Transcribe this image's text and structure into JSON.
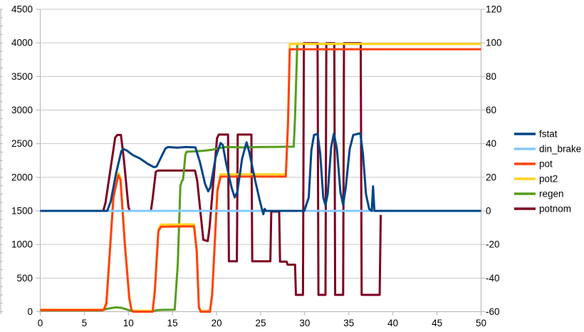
{
  "chart_data": {
    "type": "line",
    "title": "",
    "xlabel": "",
    "ylabel_left": "",
    "ylabel_right": "",
    "grid": "horizontal",
    "legend_position": "right",
    "background_color": "#ffffff",
    "grid_color": "#c6c6c6",
    "axis_color": "#b3b3b3",
    "text_color": "#000000",
    "x_axis": {
      "min": 0,
      "max": 50,
      "tick_step": 5,
      "ticks": [
        0,
        5,
        10,
        15,
        20,
        25,
        30,
        35,
        40,
        45,
        50
      ]
    },
    "y_axis_left": {
      "min": 0,
      "max": 4500,
      "tick_step": 500,
      "ticks": [
        0,
        500,
        1000,
        1500,
        2000,
        2500,
        3000,
        3500,
        4000,
        4500
      ]
    },
    "y_axis_right": {
      "min": -60,
      "max": 120,
      "tick_step": 20,
      "ticks": [
        -60,
        -40,
        -20,
        0,
        20,
        40,
        60,
        80,
        100,
        120
      ]
    },
    "axis_mapping_note": "left 1500 = right 0; 500 left units = 20 right units; series point values below are in left-axis units",
    "series": [
      {
        "name": "fstat",
        "color": "#004586",
        "points": [
          [
            0,
            1500
          ],
          [
            7.6,
            1500
          ],
          [
            8.0,
            1640
          ],
          [
            8.6,
            2060
          ],
          [
            9.2,
            2390
          ],
          [
            9.45,
            2420
          ],
          [
            9.8,
            2400
          ],
          [
            10.5,
            2330
          ],
          [
            11.3,
            2280
          ],
          [
            12.2,
            2200
          ],
          [
            12.9,
            2150
          ],
          [
            13.2,
            2160
          ],
          [
            13.6,
            2270
          ],
          [
            14.2,
            2430
          ],
          [
            14.5,
            2450
          ],
          [
            15.5,
            2440
          ],
          [
            16.5,
            2450
          ],
          [
            17.6,
            2445
          ],
          [
            18.1,
            2230
          ],
          [
            18.7,
            1900
          ],
          [
            19.05,
            1790
          ],
          [
            19.3,
            1850
          ],
          [
            19.9,
            2300
          ],
          [
            20.45,
            2510
          ],
          [
            20.7,
            2480
          ],
          [
            21.1,
            2200
          ],
          [
            21.7,
            1850
          ],
          [
            22.05,
            1700
          ],
          [
            22.35,
            1780
          ],
          [
            22.9,
            2280
          ],
          [
            23.4,
            2520
          ],
          [
            23.7,
            2380
          ],
          [
            24.3,
            2000
          ],
          [
            24.9,
            1650
          ],
          [
            25.3,
            1450
          ],
          [
            25.45,
            1530
          ],
          [
            25.6,
            1500
          ],
          [
            29.95,
            1500
          ],
          [
            30.45,
            1700
          ],
          [
            30.75,
            2400
          ],
          [
            31.05,
            2630
          ],
          [
            31.45,
            2645
          ],
          [
            31.75,
            2350
          ],
          [
            32.1,
            1700
          ],
          [
            32.35,
            1585
          ],
          [
            32.6,
            1750
          ],
          [
            33.0,
            2450
          ],
          [
            33.3,
            2650
          ],
          [
            33.65,
            2420
          ],
          [
            34.05,
            1780
          ],
          [
            34.35,
            1590
          ],
          [
            34.65,
            1850
          ],
          [
            35.1,
            2420
          ],
          [
            35.5,
            2630
          ],
          [
            36.3,
            2655
          ],
          [
            36.6,
            2350
          ],
          [
            36.95,
            1750
          ],
          [
            37.3,
            1530
          ],
          [
            37.6,
            1500
          ],
          [
            37.75,
            1865
          ],
          [
            37.9,
            1500
          ],
          [
            50,
            1500
          ]
        ]
      },
      {
        "name": "din_brake",
        "color": "#83caff",
        "points": [
          [
            0,
            1500
          ],
          [
            50,
            1500
          ]
        ]
      },
      {
        "name": "pot",
        "color": "#ff420e",
        "points": [
          [
            0,
            25
          ],
          [
            7.2,
            25
          ],
          [
            7.5,
            120
          ],
          [
            8.3,
            1700
          ],
          [
            8.85,
            2030
          ],
          [
            9.1,
            1960
          ],
          [
            9.6,
            1000
          ],
          [
            10.1,
            200
          ],
          [
            10.35,
            25
          ],
          [
            10.55,
            0
          ],
          [
            12.75,
            0
          ],
          [
            13.0,
            300
          ],
          [
            13.4,
            1200
          ],
          [
            13.7,
            1265
          ],
          [
            17.45,
            1270
          ],
          [
            17.75,
            900
          ],
          [
            18.0,
            60
          ],
          [
            18.2,
            0
          ],
          [
            19.25,
            0
          ],
          [
            19.5,
            250
          ],
          [
            20.1,
            1800
          ],
          [
            20.45,
            2010
          ],
          [
            27.85,
            2010
          ],
          [
            28.1,
            2800
          ],
          [
            28.3,
            3905
          ],
          [
            50,
            3905
          ]
        ]
      },
      {
        "name": "pot2",
        "color": "#ffd320",
        "points": [
          [
            0,
            30
          ],
          [
            7.2,
            30
          ],
          [
            7.5,
            150
          ],
          [
            8.3,
            1730
          ],
          [
            8.85,
            2065
          ],
          [
            9.1,
            1995
          ],
          [
            9.6,
            1030
          ],
          [
            10.1,
            230
          ],
          [
            10.35,
            30
          ],
          [
            10.55,
            15
          ],
          [
            12.75,
            15
          ],
          [
            13.0,
            330
          ],
          [
            13.4,
            1230
          ],
          [
            13.7,
            1295
          ],
          [
            17.45,
            1300
          ],
          [
            17.75,
            930
          ],
          [
            18.0,
            75
          ],
          [
            18.2,
            15
          ],
          [
            19.25,
            15
          ],
          [
            19.5,
            280
          ],
          [
            20.1,
            1830
          ],
          [
            20.45,
            2045
          ],
          [
            27.85,
            2045
          ],
          [
            28.1,
            2830
          ],
          [
            28.3,
            3985
          ],
          [
            50,
            3985
          ]
        ]
      },
      {
        "name": "regen",
        "color": "#579d1c",
        "points": [
          [
            0,
            20
          ],
          [
            7.0,
            20
          ],
          [
            7.6,
            45
          ],
          [
            8.6,
            65
          ],
          [
            9.3,
            55
          ],
          [
            10.1,
            20
          ],
          [
            10.4,
            8
          ],
          [
            12.8,
            8
          ],
          [
            13.2,
            22
          ],
          [
            14.0,
            28
          ],
          [
            15.25,
            30
          ],
          [
            15.6,
            700
          ],
          [
            15.9,
            1880
          ],
          [
            16.1,
            1950
          ],
          [
            16.2,
            1970
          ],
          [
            16.45,
            2330
          ],
          [
            16.6,
            2380
          ],
          [
            17.5,
            2385
          ],
          [
            18.5,
            2395
          ],
          [
            19.5,
            2410
          ],
          [
            20.3,
            2435
          ],
          [
            21.0,
            2450
          ],
          [
            23.0,
            2445
          ],
          [
            25.0,
            2450
          ],
          [
            28.75,
            2455
          ],
          [
            28.9,
            2900
          ],
          [
            29.15,
            3985
          ],
          [
            50,
            3985
          ]
        ]
      },
      {
        "name": "potnom",
        "color": "#7e0021",
        "points": [
          [
            0,
            1500
          ],
          [
            7.15,
            1500
          ],
          [
            7.4,
            1620
          ],
          [
            8.5,
            2590
          ],
          [
            8.75,
            2630
          ],
          [
            9.15,
            2630
          ],
          [
            9.5,
            2250
          ],
          [
            10.0,
            1560
          ],
          [
            10.15,
            1500
          ],
          [
            12.55,
            1500
          ],
          [
            12.75,
            1680
          ],
          [
            13.1,
            2080
          ],
          [
            13.35,
            2100
          ],
          [
            17.55,
            2100
          ],
          [
            17.8,
            1950
          ],
          [
            18.5,
            1070
          ],
          [
            19.0,
            1050
          ],
          [
            19.2,
            1250
          ],
          [
            20.05,
            2580
          ],
          [
            20.25,
            2635
          ],
          [
            21.3,
            2635
          ],
          [
            21.4,
            750
          ],
          [
            22.3,
            750
          ],
          [
            22.4,
            2635
          ],
          [
            23.95,
            2635
          ],
          [
            24.05,
            750
          ],
          [
            26.1,
            750
          ],
          [
            26.2,
            1490
          ],
          [
            27.1,
            1490
          ],
          [
            27.2,
            745
          ],
          [
            27.95,
            745
          ],
          [
            28.05,
            700
          ],
          [
            28.9,
            700
          ],
          [
            29.0,
            250
          ],
          [
            29.8,
            250
          ],
          [
            29.9,
            3995
          ],
          [
            31.45,
            3995
          ],
          [
            31.55,
            250
          ],
          [
            32.35,
            250
          ],
          [
            32.45,
            3995
          ],
          [
            33.35,
            3995
          ],
          [
            33.45,
            250
          ],
          [
            34.35,
            250
          ],
          [
            34.45,
            3995
          ],
          [
            36.35,
            3995
          ],
          [
            36.45,
            250
          ],
          [
            38.5,
            250
          ],
          [
            38.62,
            1440
          ]
        ]
      }
    ],
    "legend": [
      "fstat",
      "din_brake",
      "pot",
      "pot2",
      "regen",
      "potnom"
    ]
  }
}
